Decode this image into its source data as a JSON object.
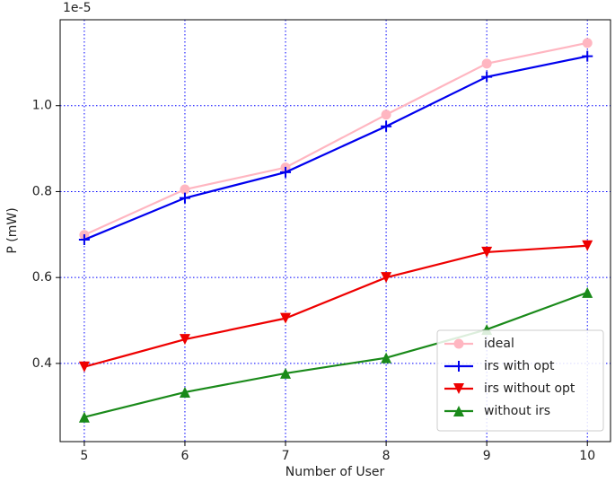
{
  "chart_data": {
    "type": "line",
    "offset_label": "1e-5",
    "x_label": "Number of User",
    "y_label": "P (mW)",
    "x": [
      5,
      6,
      7,
      8,
      9,
      10
    ],
    "xlim": [
      4.76,
      10.23
    ],
    "xticks": [
      5,
      6,
      7,
      8,
      9,
      10
    ],
    "ylim": [
      0.218,
      1.2
    ],
    "yticks": [
      0.4,
      0.6,
      0.8,
      {
        "value": 1,
        "label": "1.0"
      }
    ],
    "grid": true,
    "grid_color": "#0000ff",
    "legend_position": "lower-right",
    "series": [
      {
        "name": "ideal",
        "color": "#ffb6c1",
        "marker": "circle",
        "values": [
          0.699,
          0.805,
          0.856,
          0.979,
          1.098,
          1.146
        ]
      },
      {
        "name": "irs with opt",
        "color": "#0000ee",
        "marker": "plus",
        "values": [
          0.688,
          0.785,
          0.845,
          0.952,
          1.067,
          1.115
        ]
      },
      {
        "name": "irs without opt",
        "color": "#ee0000",
        "marker": "triangle-down",
        "values": [
          0.392,
          0.456,
          0.505,
          0.6,
          0.659,
          0.674
        ]
      },
      {
        "name": "without irs",
        "color": "#1a8a1a",
        "marker": "triangle-up",
        "values": [
          0.275,
          0.333,
          0.377,
          0.413,
          0.479,
          0.565
        ]
      }
    ]
  }
}
